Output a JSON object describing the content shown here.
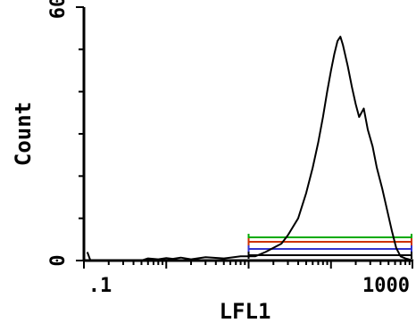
{
  "chart_data": {
    "type": "line",
    "title": "",
    "xlabel": "LFL1",
    "ylabel": "Count",
    "x_scale": "log",
    "xlim": [
      0.1,
      1000
    ],
    "ylim": [
      0,
      60
    ],
    "x_tick_labels": [
      ".1",
      "1000"
    ],
    "y_tick_labels": [
      "0",
      "60"
    ],
    "grid": false,
    "series": [
      {
        "color": "#000000",
        "points": [
          [
            0.11,
            2
          ],
          [
            0.12,
            0
          ],
          [
            0.5,
            0
          ],
          [
            0.6,
            0.5
          ],
          [
            0.8,
            0.3
          ],
          [
            1,
            0.6
          ],
          [
            1.2,
            0.4
          ],
          [
            1.5,
            0.7
          ],
          [
            2,
            0.3
          ],
          [
            3,
            0.8
          ],
          [
            5,
            0.5
          ],
          [
            8,
            1
          ],
          [
            12,
            1
          ],
          [
            16,
            2
          ],
          [
            20,
            3
          ],
          [
            25,
            4
          ],
          [
            30,
            6
          ],
          [
            40,
            10
          ],
          [
            50,
            16
          ],
          [
            60,
            22
          ],
          [
            70,
            28
          ],
          [
            80,
            34
          ],
          [
            90,
            40
          ],
          [
            100,
            45
          ],
          [
            110,
            49
          ],
          [
            120,
            52
          ],
          [
            130,
            53
          ],
          [
            140,
            51
          ],
          [
            160,
            46
          ],
          [
            180,
            41
          ],
          [
            200,
            37
          ],
          [
            220,
            34
          ],
          [
            250,
            36
          ],
          [
            280,
            31
          ],
          [
            320,
            27
          ],
          [
            360,
            22
          ],
          [
            420,
            17
          ],
          [
            480,
            12
          ],
          [
            550,
            7
          ],
          [
            620,
            3
          ],
          [
            700,
            1
          ],
          [
            800,
            0.5
          ],
          [
            1000,
            0
          ]
        ]
      }
    ],
    "gates": [
      {
        "color": "#00aa00",
        "range": [
          10,
          1000
        ]
      },
      {
        "color": "#cc3300",
        "range": [
          10,
          1000
        ]
      },
      {
        "color": "#3333cc",
        "range": [
          10,
          1000
        ]
      },
      {
        "color": "#000000",
        "range": [
          10,
          1000
        ]
      }
    ]
  }
}
